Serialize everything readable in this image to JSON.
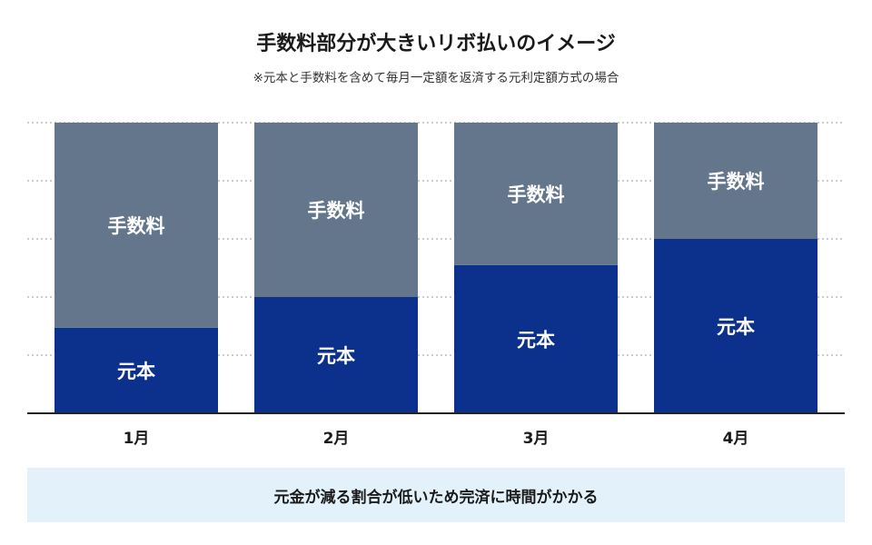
{
  "title": "手数料部分が大きいリボ払いのイメージ",
  "subtitle": "※元本と手数料を含めて毎月一定額を返済する元利定額方式の場合",
  "note": "元金が減る割合が低いため完済に時間がかかる",
  "chart_data": {
    "type": "bar",
    "stacked": true,
    "categories": [
      "1月",
      "2月",
      "3月",
      "4月"
    ],
    "series": [
      {
        "name": "元本",
        "values": [
          1.47,
          2.0,
          2.55,
          3.0
        ],
        "color": "#0c318c"
      },
      {
        "name": "手数料",
        "values": [
          3.53,
          3.0,
          2.45,
          2.0
        ],
        "color": "#64768b"
      }
    ],
    "ylim": [
      0,
      5
    ],
    "grid": true,
    "legend": "none",
    "xlabel": "",
    "ylabel": ""
  }
}
